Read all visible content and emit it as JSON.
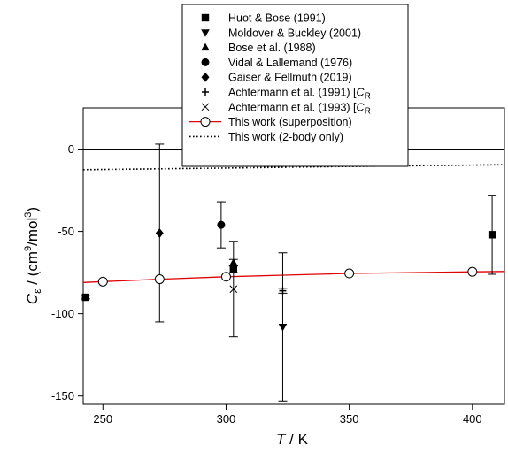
{
  "chart_data": {
    "type": "scatter",
    "title": "",
    "xlabel": {
      "italic": "T",
      "rest": " / K"
    },
    "ylabel": {
      "c": "C",
      "sub": "ε",
      "unit_pre": " / (cm",
      "sup1": "9",
      "mid": "/mol",
      "sup2": "3",
      "post": ")"
    },
    "xlim": [
      242,
      413
    ],
    "ylim": [
      -155,
      25
    ],
    "x_ticks": [
      250,
      300,
      350,
      400
    ],
    "y_ticks": [
      0,
      -50,
      -100,
      -150
    ],
    "x_tick_labels": [
      "250",
      "300",
      "350",
      "400"
    ],
    "y_tick_labels": [
      "0",
      "-50",
      "-100",
      "-150"
    ],
    "zero_line": 0,
    "legend_position": "top-center",
    "series": [
      {
        "name": "Huot & Bose (1991)",
        "marker": "square",
        "points": [
          {
            "x": 243,
            "y": -90,
            "err": 1
          },
          {
            "x": 303,
            "y": -73,
            "err": 2
          },
          {
            "x": 408,
            "y": -52,
            "err": 24
          }
        ]
      },
      {
        "name": "Moldover & Buckley (2001)",
        "marker": "triangle-down",
        "points": [
          {
            "x": 323,
            "y": -108,
            "err": 45
          }
        ]
      },
      {
        "name": "Bose et al. (1988)",
        "marker": "triangle-up",
        "points": [
          {
            "x": 303,
            "y": -69,
            "err": 2
          }
        ]
      },
      {
        "name": "Vidal & Lallemand (1976)",
        "marker": "circle",
        "points": [
          {
            "x": 298,
            "y": -46,
            "err": 14
          }
        ]
      },
      {
        "name": "Gaiser & Fellmuth (2019)",
        "marker": "diamond",
        "points": [
          {
            "x": 273,
            "y": -51,
            "err": 54
          }
        ]
      },
      {
        "name_prefix": "Achtermann et al. (1991) [",
        "name_italic": "C",
        "name_sub": "R",
        "marker": "plus",
        "points": [
          {
            "x": 323,
            "y": -86,
            "err": 1.5
          }
        ]
      },
      {
        "name_prefix": "Achtermann et al. (1993) [",
        "name_italic": "C",
        "name_sub": "R",
        "marker": "x",
        "points": [
          {
            "x": 303,
            "y": -85,
            "err": 29
          }
        ]
      },
      {
        "name": "This work (superposition)",
        "marker": "open-circle",
        "line": "solid",
        "color": "#e00000",
        "points": [
          {
            "x": 250,
            "y": -80.5
          },
          {
            "x": 273,
            "y": -79
          },
          {
            "x": 300,
            "y": -77.5
          },
          {
            "x": 350,
            "y": -75.5
          },
          {
            "x": 400,
            "y": -74.5
          }
        ],
        "curve": [
          {
            "x": 242,
            "y": -81
          },
          {
            "x": 250,
            "y": -80.5
          },
          {
            "x": 273,
            "y": -79
          },
          {
            "x": 300,
            "y": -77.5
          },
          {
            "x": 325,
            "y": -76.5
          },
          {
            "x": 350,
            "y": -75.5
          },
          {
            "x": 375,
            "y": -75
          },
          {
            "x": 400,
            "y": -74.5
          },
          {
            "x": 413,
            "y": -74.3
          }
        ]
      },
      {
        "name": "This work (2-body only)",
        "marker": "none",
        "line": "dotted",
        "color": "#000000",
        "curve": [
          {
            "x": 242,
            "y": -12.5
          },
          {
            "x": 300,
            "y": -11.5
          },
          {
            "x": 350,
            "y": -10.5
          },
          {
            "x": 413,
            "y": -9.5
          }
        ]
      }
    ]
  }
}
